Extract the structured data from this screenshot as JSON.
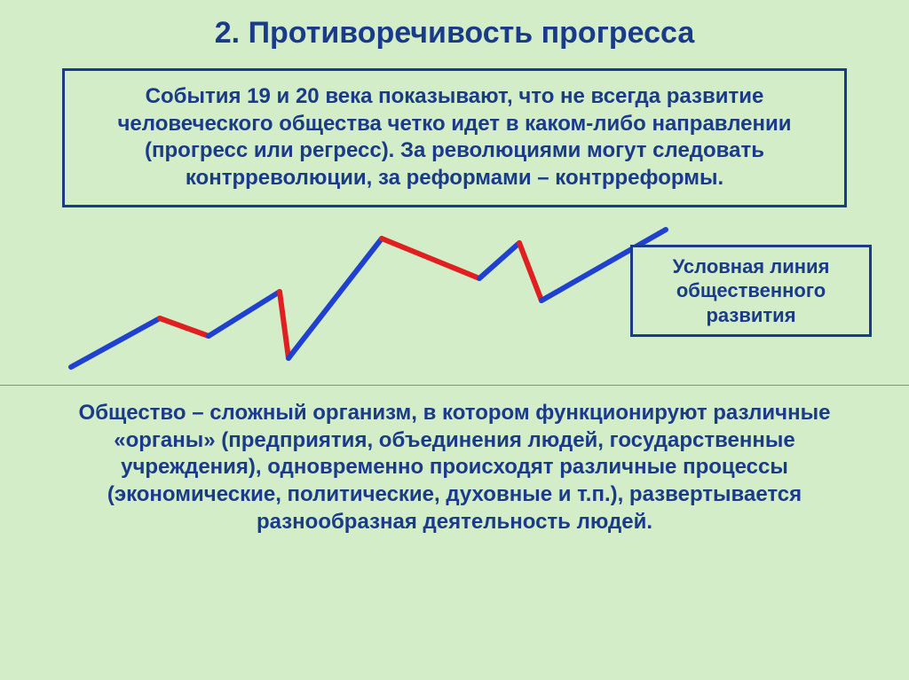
{
  "title": "2. Противоречивость прогресса",
  "box1_text": "События 19 и 20 века показывают, что не всегда развитие человеческого общества четко идет в каком-либо направлении (прогресс или регресс). За революциями могут следовать контрреволюции, за реформами – контрреформы.",
  "legend_text": "Условная линия общественного развития",
  "body_text": "Общество – сложный организм, в котором функционируют различные «органы» (предприятия, объединения людей, государственные учреждения), одновременно происходят различные процессы (экономические, политические, духовные и т.п.), развертывается разнообразная деятельность людей.",
  "chart": {
    "type": "line",
    "viewbox_width": 700,
    "viewbox_height": 190,
    "stroke_width": 6,
    "blue_color": "#2040d0",
    "red_color": "#e02020",
    "segments": [
      {
        "color": "blue",
        "points": [
          [
            20,
            170
          ],
          [
            120,
            115
          ]
        ]
      },
      {
        "color": "red",
        "points": [
          [
            120,
            115
          ],
          [
            175,
            135
          ]
        ]
      },
      {
        "color": "blue",
        "points": [
          [
            175,
            135
          ],
          [
            255,
            85
          ]
        ]
      },
      {
        "color": "red",
        "points": [
          [
            255,
            85
          ],
          [
            265,
            160
          ]
        ]
      },
      {
        "color": "blue",
        "points": [
          [
            265,
            160
          ],
          [
            370,
            25
          ]
        ]
      },
      {
        "color": "red",
        "points": [
          [
            370,
            25
          ],
          [
            480,
            70
          ]
        ]
      },
      {
        "color": "blue",
        "points": [
          [
            480,
            70
          ],
          [
            525,
            30
          ]
        ]
      },
      {
        "color": "red",
        "points": [
          [
            525,
            30
          ],
          [
            550,
            95
          ]
        ]
      },
      {
        "color": "blue",
        "points": [
          [
            550,
            95
          ],
          [
            690,
            15
          ]
        ]
      }
    ]
  },
  "colors": {
    "background": "#d4edc9",
    "text": "#1a3a8a",
    "border": "#1a3a8a",
    "divider": "#7a9a6a"
  },
  "typography": {
    "title_fontsize": 34,
    "body_fontsize": 24,
    "legend_fontsize": 22,
    "font_weight": "bold",
    "font_family": "Arial"
  }
}
